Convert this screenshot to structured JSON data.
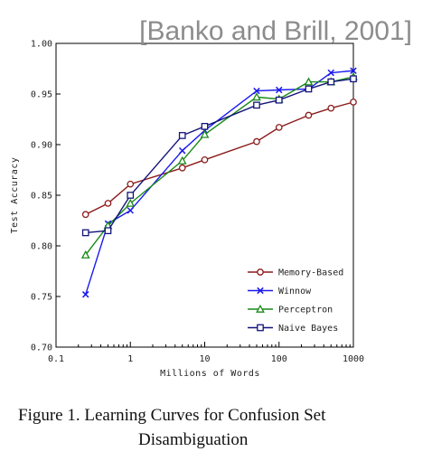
{
  "slide": {
    "title": "[Banko and Brill, 2001]",
    "caption_line1": "Figure 1. Learning Curves for Confusion Set",
    "caption_line2": "Disambiguation"
  },
  "chart_data": {
    "type": "line",
    "xscale": "log",
    "xlim": [
      0.1,
      1000
    ],
    "ylim": [
      0.7,
      1.0
    ],
    "xlabel": "Millions of Words",
    "ylabel": "Test Accuracy",
    "xticks": [
      0.1,
      1,
      10,
      100,
      1000
    ],
    "xtick_labels": [
      "0.1",
      "1",
      "10",
      "100",
      "1000"
    ],
    "yticks": [
      0.7,
      0.75,
      0.8,
      0.85,
      0.9,
      0.95,
      1.0
    ],
    "ytick_labels": [
      "0.70",
      "0.75",
      "0.80",
      "0.85",
      "0.90",
      "0.95",
      "1.00"
    ],
    "grid": false,
    "legend_position": "bottom-right",
    "x": [
      0.25,
      0.5,
      1,
      5,
      10,
      50,
      100,
      250,
      500,
      1000
    ],
    "series": [
      {
        "name": "Memory-Based",
        "color": "#8b1a1a",
        "marker": "circle",
        "values": [
          0.831,
          0.842,
          0.861,
          0.877,
          0.885,
          0.903,
          0.917,
          0.929,
          0.936,
          0.942
        ]
      },
      {
        "name": "Winnow",
        "color": "#1a1aee",
        "marker": "x",
        "values": [
          0.752,
          0.822,
          0.835,
          0.894,
          0.914,
          0.953,
          0.954,
          0.955,
          0.971,
          0.973
        ]
      },
      {
        "name": "Perceptron",
        "color": "#1a8a1a",
        "marker": "triangle",
        "values": [
          0.791,
          0.82,
          0.842,
          0.884,
          0.91,
          0.947,
          0.945,
          0.962,
          0.962,
          0.967
        ]
      },
      {
        "name": "Naive Bayes",
        "color": "#14147a",
        "marker": "square",
        "values": [
          0.813,
          0.815,
          0.85,
          0.909,
          0.918,
          0.939,
          0.944,
          0.955,
          0.962,
          0.965
        ]
      }
    ]
  }
}
